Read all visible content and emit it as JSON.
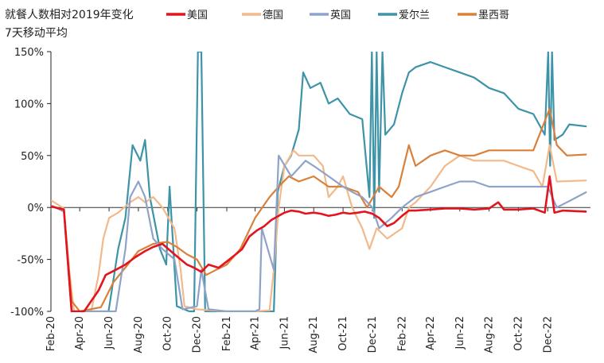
{
  "chart_data": {
    "type": "line",
    "title_lines": [
      "就餐人数相对2019年变化",
      "7天移动平均"
    ],
    "ylim": [
      -100,
      150
    ],
    "y_ticks": [
      -100,
      -50,
      0,
      50,
      100,
      150
    ],
    "y_tick_labels": [
      "-100%",
      "-50%",
      "0%",
      "50%",
      "100%",
      "150%"
    ],
    "x_range": [
      "2020-02-01",
      "2023-02-28"
    ],
    "x_ticks": [
      "2020-02-01",
      "2020-04-01",
      "2020-06-01",
      "2020-08-01",
      "2020-10-01",
      "2020-12-01",
      "2021-02-01",
      "2021-04-01",
      "2021-06-01",
      "2021-08-01",
      "2021-10-01",
      "2021-12-01",
      "2022-02-01",
      "2022-04-01",
      "2022-06-01",
      "2022-08-01",
      "2022-10-01",
      "2022-12-01"
    ],
    "x_tick_labels": [
      "Feb-20",
      "Apr-20",
      "Jun-20",
      "Aug-20",
      "Oct-20",
      "Dec-20",
      "Feb-21",
      "Apr-21",
      "Jun-21",
      "Aug-21",
      "Oct-21",
      "Dec-21",
      "Feb-22",
      "Apr-22",
      "Jun-22",
      "Aug-22",
      "Oct-22",
      "Dec-22"
    ],
    "legend_position": "top",
    "series": [
      {
        "name": "爱尔兰",
        "color": "#3d93a8",
        "points": [
          [
            "2020-02-01",
            1
          ],
          [
            "2020-02-28",
            -2
          ],
          [
            "2020-03-15",
            -100
          ],
          [
            "2020-05-31",
            -100
          ],
          [
            "2020-06-20",
            -40
          ],
          [
            "2020-07-05",
            -10
          ],
          [
            "2020-07-20",
            60
          ],
          [
            "2020-08-05",
            45
          ],
          [
            "2020-08-15",
            65
          ],
          [
            "2020-08-25",
            10
          ],
          [
            "2020-09-15",
            -40
          ],
          [
            "2020-09-28",
            -55
          ],
          [
            "2020-10-05",
            20
          ],
          [
            "2020-10-20",
            -95
          ],
          [
            "2020-11-15",
            -100
          ],
          [
            "2020-11-25",
            -100
          ],
          [
            "2020-12-03",
            150
          ],
          [
            "2020-12-10",
            150
          ],
          [
            "2020-12-18",
            -100
          ],
          [
            "2021-02-01",
            -100
          ],
          [
            "2021-04-01",
            -100
          ],
          [
            "2021-05-10",
            -100
          ],
          [
            "2021-05-18",
            15
          ],
          [
            "2021-06-01",
            40
          ],
          [
            "2021-06-15",
            50
          ],
          [
            "2021-07-01",
            75
          ],
          [
            "2021-07-10",
            130
          ],
          [
            "2021-07-25",
            115
          ],
          [
            "2021-08-15",
            120
          ],
          [
            "2021-09-01",
            100
          ],
          [
            "2021-09-20",
            105
          ],
          [
            "2021-10-15",
            90
          ],
          [
            "2021-11-10",
            85
          ],
          [
            "2021-11-25",
            10
          ],
          [
            "2021-11-30",
            150
          ],
          [
            "2021-12-05",
            -10
          ],
          [
            "2021-12-10",
            150
          ],
          [
            "2021-12-15",
            15
          ],
          [
            "2021-12-22",
            150
          ],
          [
            "2021-12-28",
            70
          ],
          [
            "2022-01-15",
            80
          ],
          [
            "2022-02-01",
            110
          ],
          [
            "2022-02-15",
            130
          ],
          [
            "2022-03-01",
            135
          ],
          [
            "2022-04-01",
            140
          ],
          [
            "2022-05-01",
            135
          ],
          [
            "2022-06-01",
            130
          ],
          [
            "2022-07-01",
            125
          ],
          [
            "2022-08-01",
            115
          ],
          [
            "2022-09-01",
            110
          ],
          [
            "2022-10-01",
            95
          ],
          [
            "2022-11-01",
            90
          ],
          [
            "2022-11-25",
            70
          ],
          [
            "2022-12-02",
            150
          ],
          [
            "2022-12-06",
            40
          ],
          [
            "2022-12-10",
            150
          ],
          [
            "2022-12-15",
            65
          ],
          [
            "2023-01-01",
            70
          ],
          [
            "2023-01-15",
            80
          ],
          [
            "2023-02-20",
            78
          ]
        ]
      },
      {
        "name": "德国",
        "color": "#f2b98a",
        "points": [
          [
            "2020-02-01",
            7
          ],
          [
            "2020-02-28",
            -1
          ],
          [
            "2020-03-10",
            -60
          ],
          [
            "2020-03-20",
            -100
          ],
          [
            "2020-04-25",
            -100
          ],
          [
            "2020-05-10",
            -65
          ],
          [
            "2020-05-20",
            -30
          ],
          [
            "2020-06-01",
            -10
          ],
          [
            "2020-06-20",
            -5
          ],
          [
            "2020-07-15",
            5
          ],
          [
            "2020-08-01",
            10
          ],
          [
            "2020-08-15",
            5
          ],
          [
            "2020-09-01",
            10
          ],
          [
            "2020-09-20",
            0
          ],
          [
            "2020-10-15",
            -20
          ],
          [
            "2020-10-28",
            -60
          ],
          [
            "2020-11-05",
            -95
          ],
          [
            "2020-12-01",
            -98
          ],
          [
            "2021-02-01",
            -100
          ],
          [
            "2021-04-01",
            -100
          ],
          [
            "2021-05-01",
            -99
          ],
          [
            "2021-05-10",
            -60
          ],
          [
            "2021-05-20",
            0
          ],
          [
            "2021-06-01",
            40
          ],
          [
            "2021-06-20",
            55
          ],
          [
            "2021-07-01",
            50
          ],
          [
            "2021-08-01",
            50
          ],
          [
            "2021-08-20",
            40
          ],
          [
            "2021-09-01",
            10
          ],
          [
            "2021-09-20",
            20
          ],
          [
            "2021-10-01",
            30
          ],
          [
            "2021-10-20",
            0
          ],
          [
            "2021-11-10",
            -20
          ],
          [
            "2021-11-25",
            -40
          ],
          [
            "2021-12-10",
            -20
          ],
          [
            "2022-01-01",
            -30
          ],
          [
            "2022-02-01",
            -20
          ],
          [
            "2022-02-15",
            0
          ],
          [
            "2022-03-01",
            5
          ],
          [
            "2022-04-01",
            20
          ],
          [
            "2022-05-01",
            40
          ],
          [
            "2022-06-01",
            50
          ],
          [
            "2022-07-01",
            45
          ],
          [
            "2022-08-01",
            45
          ],
          [
            "2022-09-01",
            45
          ],
          [
            "2022-10-01",
            40
          ],
          [
            "2022-11-01",
            35
          ],
          [
            "2022-11-20",
            20
          ],
          [
            "2022-12-05",
            60
          ],
          [
            "2022-12-20",
            25
          ],
          [
            "2023-02-20",
            26
          ]
        ]
      },
      {
        "name": "墨西哥",
        "color": "#d9803a",
        "points": [
          [
            "2020-02-01",
            2
          ],
          [
            "2020-02-28",
            -3
          ],
          [
            "2020-03-15",
            -90
          ],
          [
            "2020-04-01",
            -100
          ],
          [
            "2020-05-15",
            -96
          ],
          [
            "2020-06-10",
            -72
          ],
          [
            "2020-07-10",
            -55
          ],
          [
            "2020-08-01",
            -42
          ],
          [
            "2020-09-01",
            -35
          ],
          [
            "2020-10-01",
            -33
          ],
          [
            "2020-10-20",
            -38
          ],
          [
            "2020-11-10",
            -45
          ],
          [
            "2020-12-01",
            -50
          ],
          [
            "2020-12-20",
            -65
          ],
          [
            "2021-01-10",
            -60
          ],
          [
            "2021-02-01",
            -55
          ],
          [
            "2021-03-01",
            -40
          ],
          [
            "2021-04-01",
            -10
          ],
          [
            "2021-05-01",
            10
          ],
          [
            "2021-05-20",
            20
          ],
          [
            "2021-06-10",
            30
          ],
          [
            "2021-07-01",
            25
          ],
          [
            "2021-08-01",
            30
          ],
          [
            "2021-09-01",
            20
          ],
          [
            "2021-10-01",
            20
          ],
          [
            "2021-11-01",
            15
          ],
          [
            "2021-11-20",
            0
          ],
          [
            "2021-12-15",
            20
          ],
          [
            "2022-01-10",
            10
          ],
          [
            "2022-01-25",
            20
          ],
          [
            "2022-02-15",
            60
          ],
          [
            "2022-03-01",
            40
          ],
          [
            "2022-04-01",
            50
          ],
          [
            "2022-05-01",
            55
          ],
          [
            "2022-06-01",
            50
          ],
          [
            "2022-07-01",
            50
          ],
          [
            "2022-08-01",
            55
          ],
          [
            "2022-09-01",
            55
          ],
          [
            "2022-10-01",
            55
          ],
          [
            "2022-11-01",
            55
          ],
          [
            "2022-12-05",
            95
          ],
          [
            "2022-12-20",
            60
          ],
          [
            "2023-01-10",
            50
          ],
          [
            "2023-02-20",
            51
          ]
        ]
      },
      {
        "name": "英国",
        "color": "#8fa3c8",
        "points": [
          [
            "2020-02-01",
            2
          ],
          [
            "2020-02-28",
            -4
          ],
          [
            "2020-03-15",
            -100
          ],
          [
            "2020-06-15",
            -100
          ],
          [
            "2020-07-05",
            -40
          ],
          [
            "2020-07-15",
            10
          ],
          [
            "2020-08-01",
            25
          ],
          [
            "2020-08-15",
            10
          ],
          [
            "2020-09-01",
            -30
          ],
          [
            "2020-09-20",
            -40
          ],
          [
            "2020-10-15",
            -50
          ],
          [
            "2020-11-01",
            -98
          ],
          [
            "2020-12-01",
            -95
          ],
          [
            "2020-12-10",
            -60
          ],
          [
            "2020-12-25",
            -98
          ],
          [
            "2021-02-01",
            -100
          ],
          [
            "2021-04-01",
            -100
          ],
          [
            "2021-04-10",
            -98
          ],
          [
            "2021-04-15",
            -20
          ],
          [
            "2021-05-10",
            -60
          ],
          [
            "2021-05-20",
            50
          ],
          [
            "2021-06-15",
            30
          ],
          [
            "2021-07-15",
            45
          ],
          [
            "2021-08-01",
            40
          ],
          [
            "2021-09-01",
            30
          ],
          [
            "2021-10-01",
            20
          ],
          [
            "2021-10-20",
            15
          ],
          [
            "2021-11-10",
            10
          ],
          [
            "2021-12-01",
            0
          ],
          [
            "2021-12-15",
            -20
          ],
          [
            "2022-01-10",
            -10
          ],
          [
            "2022-02-01",
            0
          ],
          [
            "2022-03-01",
            10
          ],
          [
            "2022-04-01",
            15
          ],
          [
            "2022-05-01",
            20
          ],
          [
            "2022-06-01",
            25
          ],
          [
            "2022-07-01",
            25
          ],
          [
            "2022-08-01",
            20
          ],
          [
            "2022-09-01",
            20
          ],
          [
            "2022-10-01",
            20
          ],
          [
            "2022-11-01",
            20
          ],
          [
            "2022-12-01",
            20
          ],
          [
            "2022-12-20",
            0
          ],
          [
            "2023-01-10",
            5
          ],
          [
            "2023-02-20",
            15
          ]
        ]
      },
      {
        "name": "美国",
        "color": "#e3141d",
        "points": [
          [
            "2020-02-01",
            1
          ],
          [
            "2020-02-28",
            -2
          ],
          [
            "2020-03-15",
            -100
          ],
          [
            "2020-04-10",
            -100
          ],
          [
            "2020-04-25",
            -90
          ],
          [
            "2020-05-10",
            -80
          ],
          [
            "2020-05-25",
            -65
          ],
          [
            "2020-06-15",
            -60
          ],
          [
            "2020-07-05",
            -55
          ],
          [
            "2020-07-25",
            -48
          ],
          [
            "2020-08-15",
            -42
          ],
          [
            "2020-09-01",
            -38
          ],
          [
            "2020-09-20",
            -35
          ],
          [
            "2020-10-15",
            -45
          ],
          [
            "2020-11-10",
            -55
          ],
          [
            "2020-11-25",
            -58
          ],
          [
            "2020-12-10",
            -62
          ],
          [
            "2020-12-25",
            -55
          ],
          [
            "2021-01-15",
            -58
          ],
          [
            "2021-02-01",
            -52
          ],
          [
            "2021-02-20",
            -45
          ],
          [
            "2021-03-05",
            -40
          ],
          [
            "2021-03-20",
            -28
          ],
          [
            "2021-04-05",
            -22
          ],
          [
            "2021-04-20",
            -18
          ],
          [
            "2021-05-05",
            -12
          ],
          [
            "2021-05-20",
            -8
          ],
          [
            "2021-06-01",
            -5
          ],
          [
            "2021-06-15",
            -3
          ],
          [
            "2021-07-01",
            -4
          ],
          [
            "2021-07-15",
            -6
          ],
          [
            "2021-08-01",
            -5
          ],
          [
            "2021-08-15",
            -6
          ],
          [
            "2021-09-01",
            -8
          ],
          [
            "2021-09-15",
            -7
          ],
          [
            "2021-10-01",
            -5
          ],
          [
            "2021-10-15",
            -6
          ],
          [
            "2021-11-01",
            -5
          ],
          [
            "2021-11-15",
            -4
          ],
          [
            "2021-12-01",
            -6
          ],
          [
            "2021-12-15",
            -10
          ],
          [
            "2022-01-01",
            -18
          ],
          [
            "2022-01-15",
            -15
          ],
          [
            "2022-02-01",
            -8
          ],
          [
            "2022-02-15",
            -3
          ],
          [
            "2022-03-01",
            -3
          ],
          [
            "2022-04-01",
            -2
          ],
          [
            "2022-05-01",
            -1
          ],
          [
            "2022-06-01",
            -1
          ],
          [
            "2022-07-01",
            -2
          ],
          [
            "2022-08-01",
            -1
          ],
          [
            "2022-08-20",
            5
          ],
          [
            "2022-09-01",
            -2
          ],
          [
            "2022-10-01",
            -2
          ],
          [
            "2022-11-01",
            -1
          ],
          [
            "2022-11-25",
            -5
          ],
          [
            "2022-12-05",
            30
          ],
          [
            "2022-12-15",
            -5
          ],
          [
            "2023-01-01",
            -3
          ],
          [
            "2023-02-20",
            -4
          ]
        ]
      }
    ]
  }
}
